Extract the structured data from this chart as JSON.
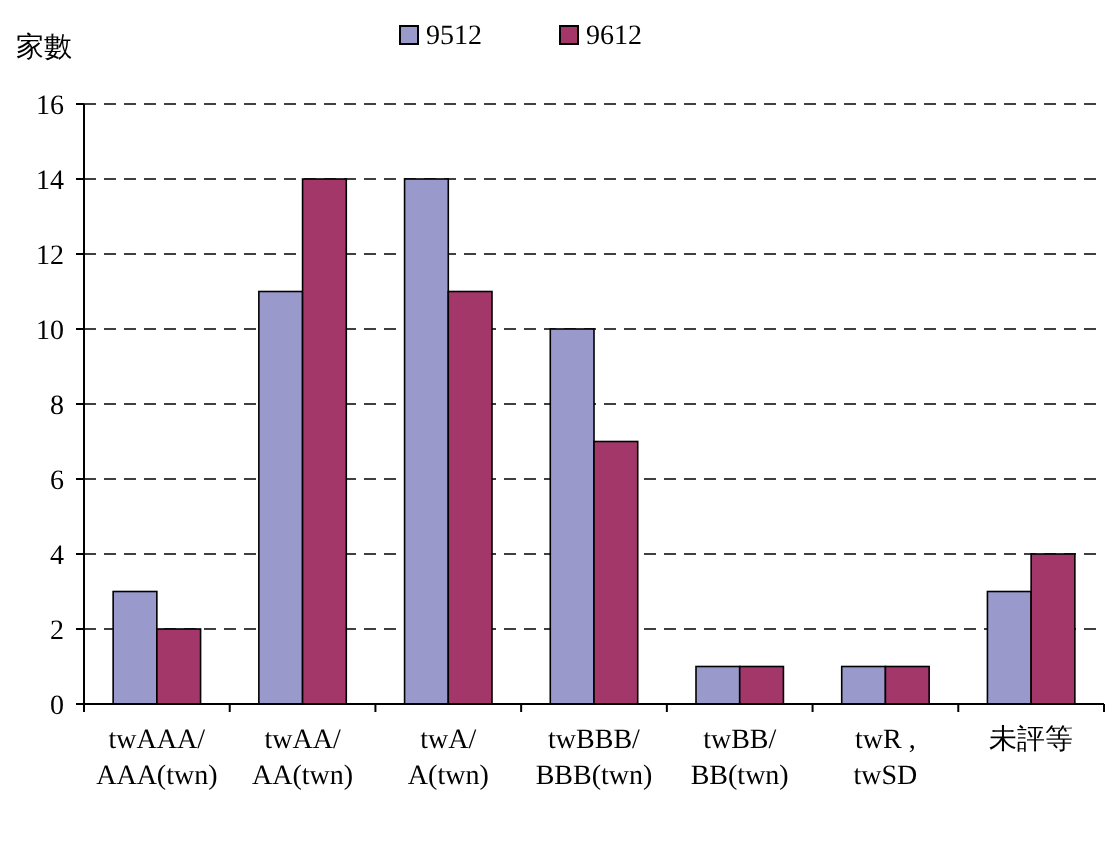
{
  "chart_data": {
    "type": "bar",
    "ylabel": "家數",
    "categories": [
      "twAAA/\nAAA(twn)",
      "twAA/\nAA(twn)",
      "twA/\nA(twn)",
      "twBBB/\nBBB(twn)",
      "twBB/\nBB(twn)",
      "twR ,\ntwSD",
      "未評等"
    ],
    "series": [
      {
        "name": "9512",
        "color": "#9999cc",
        "values": [
          3,
          11,
          14,
          10,
          1,
          1,
          3
        ]
      },
      {
        "name": "9612",
        "color": "#a3376a",
        "values": [
          2,
          14,
          11,
          7,
          1,
          1,
          4
        ]
      }
    ],
    "ylim": [
      0,
      16
    ],
    "yticks": [
      0,
      2,
      4,
      6,
      8,
      10,
      12,
      14,
      16
    ],
    "grid": "y",
    "legend": "top"
  }
}
